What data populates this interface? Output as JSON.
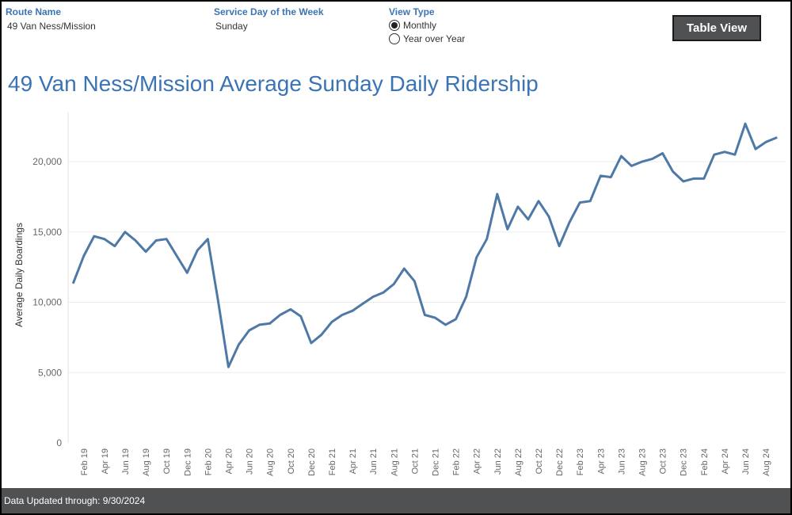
{
  "filters": {
    "route": {
      "title": "Route Name",
      "value": "49 Van Ness/Mission"
    },
    "day": {
      "title": "Service Day of the Week",
      "value": "Sunday"
    },
    "view": {
      "title": "View Type",
      "options": [
        {
          "label": "Monthly",
          "selected": true
        },
        {
          "label": "Year over Year",
          "selected": false
        }
      ]
    }
  },
  "table_view_button": "Table View",
  "footer": "Data Updated through: 9/30/2024",
  "colors": {
    "title": "#3a74b5",
    "line": "#4e79a7",
    "footer_bg": "#4f5152"
  },
  "chart_data": {
    "type": "line",
    "title": "49 Van Ness/Mission Average Sunday Daily Ridership",
    "ylabel": "Average Daily Boardings",
    "xlabel": "",
    "ylim": [
      0,
      23500
    ],
    "yticks": [
      0,
      5000,
      10000,
      15000,
      20000
    ],
    "ytick_labels": [
      "0",
      "5,000",
      "10,000",
      "15,000",
      "20,000"
    ],
    "grid": true,
    "x_start": "Jan 19",
    "x_end": "Sep 24",
    "xtick_labels": [
      "Feb 19",
      "Apr 19",
      "Jun 19",
      "Aug 19",
      "Oct 19",
      "Dec 19",
      "Feb 20",
      "Apr 20",
      "Jun 20",
      "Aug 20",
      "Oct 20",
      "Dec 20",
      "Feb 21",
      "Apr 21",
      "Jun 21",
      "Aug 21",
      "Oct 21",
      "Dec 21",
      "Feb 22",
      "Apr 22",
      "Jun 22",
      "Aug 22",
      "Oct 22",
      "Dec 22",
      "Feb 23",
      "Apr 23",
      "Jun 23",
      "Aug 23",
      "Oct 23",
      "Dec 23",
      "Feb 24",
      "Apr 24",
      "Jun 24",
      "Aug 24"
    ],
    "series": [
      {
        "values": [
          11400,
          13300,
          14700,
          14500,
          14000,
          15000,
          14400,
          13600,
          14400,
          14500,
          13300,
          12100,
          13700,
          14500,
          10100,
          5400,
          7000,
          8000,
          8400,
          8500,
          9100,
          9500,
          9000,
          7100,
          7700,
          8600,
          9100,
          9400,
          9900,
          10400,
          10700,
          11300,
          12400,
          11500,
          9100,
          8900,
          8400,
          8800,
          10400,
          13200,
          14500,
          17700,
          15200,
          16800,
          15900,
          17200,
          16100,
          14000,
          15700,
          17100,
          17200,
          19000,
          18900,
          20400,
          19700,
          20000,
          20200,
          20600,
          19300,
          18600,
          18800,
          18800,
          20500,
          20700,
          20500,
          22700,
          20900,
          21400,
          21700
        ]
      }
    ]
  }
}
